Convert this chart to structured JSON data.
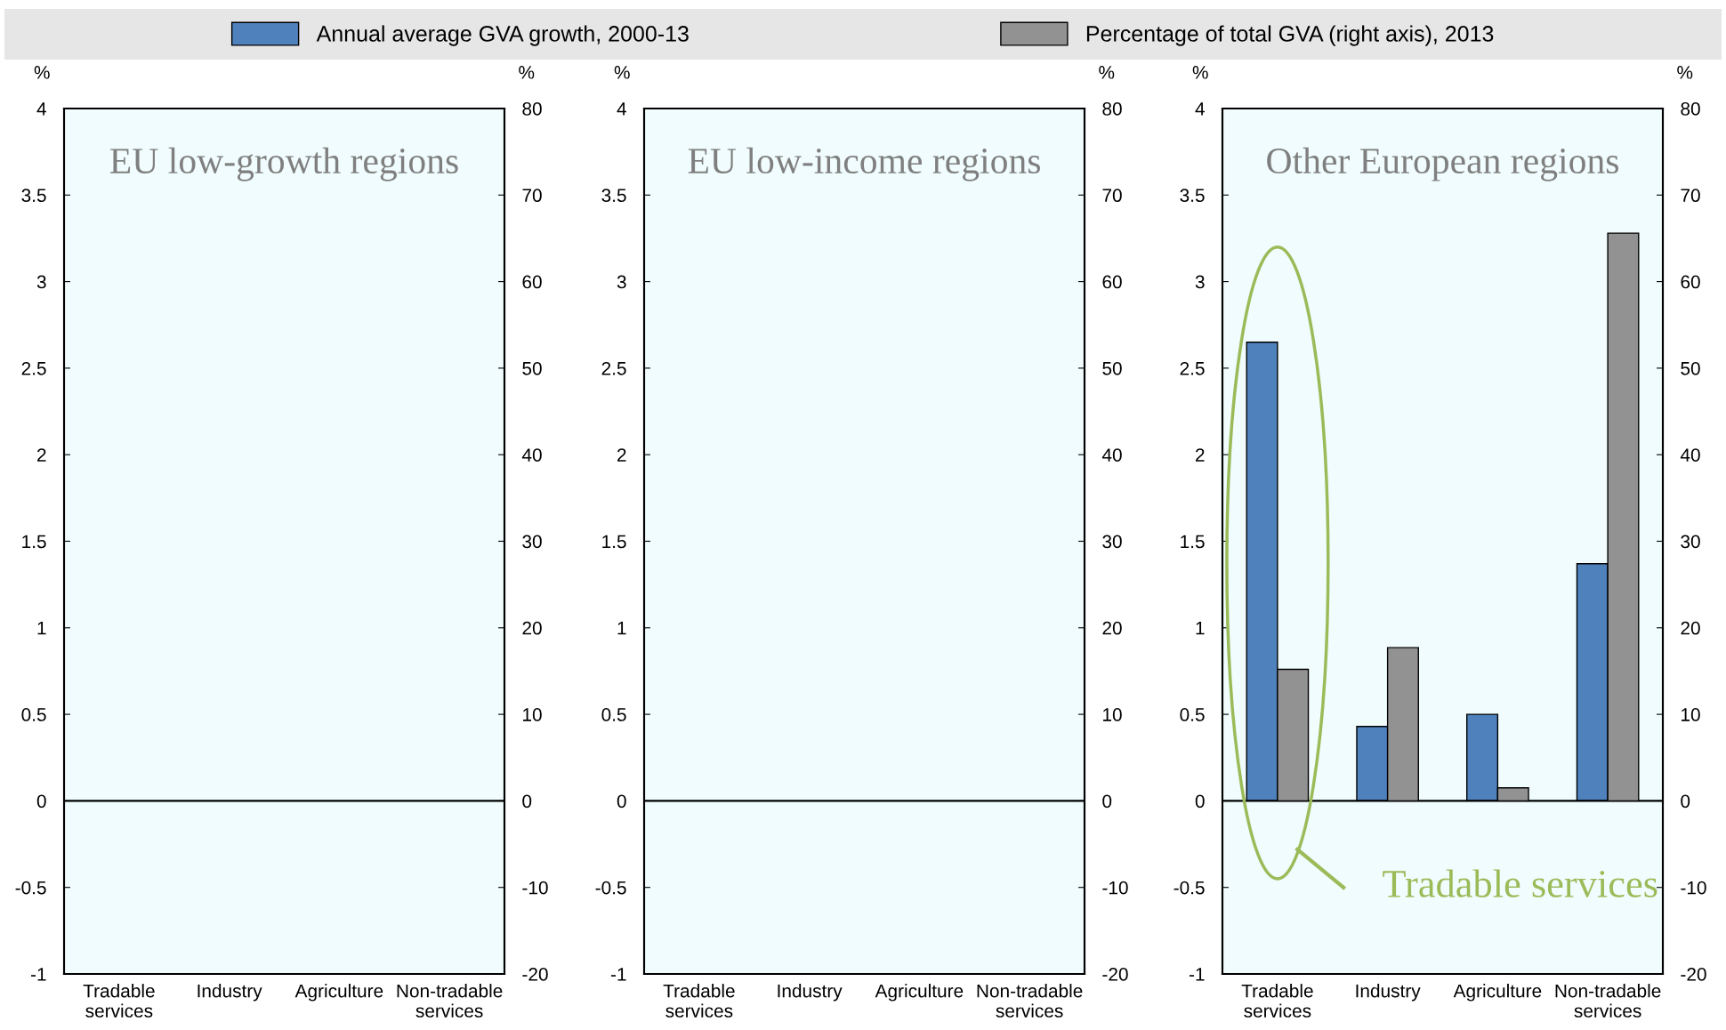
{
  "chart_data": [
    {
      "type": "bar",
      "title": "EU low-growth regions",
      "ylabel": "%",
      "y2label": "%",
      "legend": "top",
      "categories": [
        "Tradable\nservices",
        "Industry",
        "Agriculture",
        "Non-tradable\nservices"
      ],
      "series": [
        {
          "name": "Annual average GVA growth, 2000-13",
          "color": "#4f81bd",
          "values": [
            null,
            null,
            null,
            null
          ]
        },
        {
          "name": "Percentage of total GVA (right axis), 2013",
          "color": "#929292",
          "axis": "y2",
          "values": [
            null,
            null,
            null,
            null
          ]
        }
      ],
      "ylim": [
        -1,
        4
      ],
      "yticks": [
        -1,
        -0.5,
        0,
        0.5,
        1,
        1.5,
        2,
        2.5,
        3,
        3.5,
        4
      ],
      "y2lim": [
        -20,
        80
      ],
      "y2ticks": [
        -20,
        -10,
        0,
        10,
        20,
        30,
        40,
        50,
        60,
        70,
        80
      ]
    },
    {
      "type": "bar",
      "title": "EU low-income regions",
      "ylabel": "%",
      "y2label": "%",
      "categories": [
        "Tradable\nservices",
        "Industry",
        "Agriculture",
        "Non-tradable\nservices"
      ],
      "series": [
        {
          "color": "#4f81bd",
          "values": [
            null,
            null,
            null,
            null
          ]
        },
        {
          "color": "#929292",
          "axis": "y2",
          "values": [
            null,
            null,
            null,
            null
          ]
        }
      ],
      "ylim": [
        -1,
        4
      ],
      "yticks": [
        -1,
        -0.5,
        0,
        0.5,
        1,
        1.5,
        2,
        2.5,
        3,
        3.5,
        4
      ],
      "y2lim": [
        -20,
        80
      ],
      "y2ticks": [
        -20,
        -10,
        0,
        10,
        20,
        30,
        40,
        50,
        60,
        70,
        80
      ]
    },
    {
      "type": "bar",
      "title": "Other European regions",
      "ylabel": "%",
      "y2label": "%",
      "categories": [
        "Tradable\nservices",
        "Industry",
        "Agriculture",
        "Non-tradable\nservices"
      ],
      "series": [
        {
          "color": "#4f81bd",
          "values": [
            2.65,
            0.43,
            0.5,
            1.37
          ]
        },
        {
          "color": "#929292",
          "axis": "y2",
          "values": [
            15.2,
            17.7,
            1.5,
            65.6
          ]
        }
      ],
      "ylim": [
        -1,
        4
      ],
      "yticks": [
        -1,
        -0.5,
        0,
        0.5,
        1,
        1.5,
        2,
        2.5,
        3,
        3.5,
        4
      ],
      "y2lim": [
        -20,
        80
      ],
      "y2ticks": [
        -20,
        -10,
        0,
        10,
        20,
        30,
        40,
        50,
        60,
        70,
        80
      ],
      "annotations": [
        "Tradable services"
      ]
    }
  ]
}
